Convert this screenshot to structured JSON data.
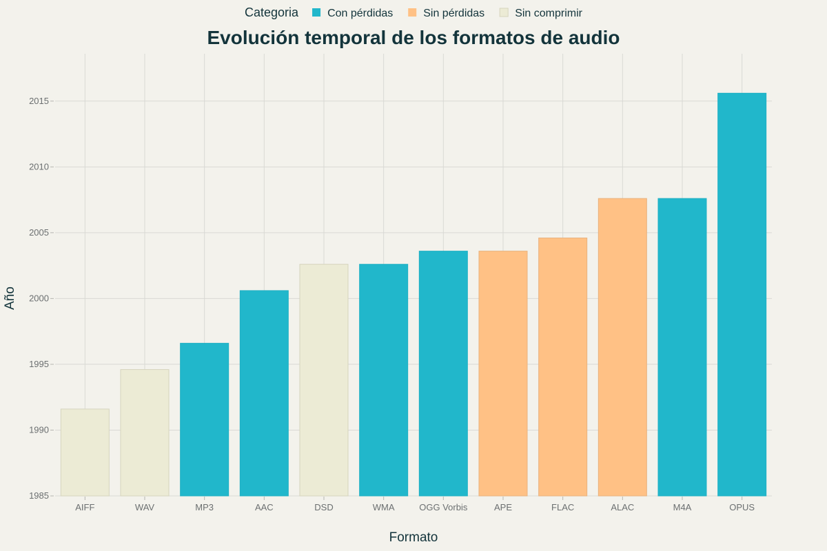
{
  "chart_data": {
    "type": "bar",
    "title": "Evolución temporal de los formatos de audio",
    "xlabel": "Formato",
    "ylabel": "Año",
    "ylim": [
      1985,
      2018.6
    ],
    "yticks": [
      "1985",
      "1990",
      "1995",
      "2000",
      "2005",
      "2010",
      "2015"
    ],
    "grid": true,
    "legend": {
      "title": "Categoria",
      "placement": "top",
      "entries": [
        {
          "name": "Con pérdidas",
          "color": "#21B7CB"
        },
        {
          "name": "Sin pérdidas",
          "color": "#FFC185"
        },
        {
          "name": "Sin comprimir",
          "color": "#ECEBD5"
        }
      ]
    },
    "categories": [
      "AIFF",
      "WAV",
      "MP3",
      "AAC",
      "DSD",
      "WMA",
      "OGG Vorbis",
      "APE",
      "FLAC",
      "ALAC",
      "M4A",
      "OPUS"
    ],
    "values": [
      1991.6,
      1994.6,
      1996.6,
      2000.6,
      2002.6,
      2002.6,
      2003.6,
      2003.6,
      2004.6,
      2007.6,
      2007.6,
      2015.6
    ],
    "category_group": [
      "Sin comprimir",
      "Sin comprimir",
      "Con pérdidas",
      "Con pérdidas",
      "Sin comprimir",
      "Con pérdidas",
      "Con pérdidas",
      "Sin pérdidas",
      "Sin pérdidas",
      "Sin pérdidas",
      "Con pérdidas",
      "Con pérdidas"
    ]
  }
}
